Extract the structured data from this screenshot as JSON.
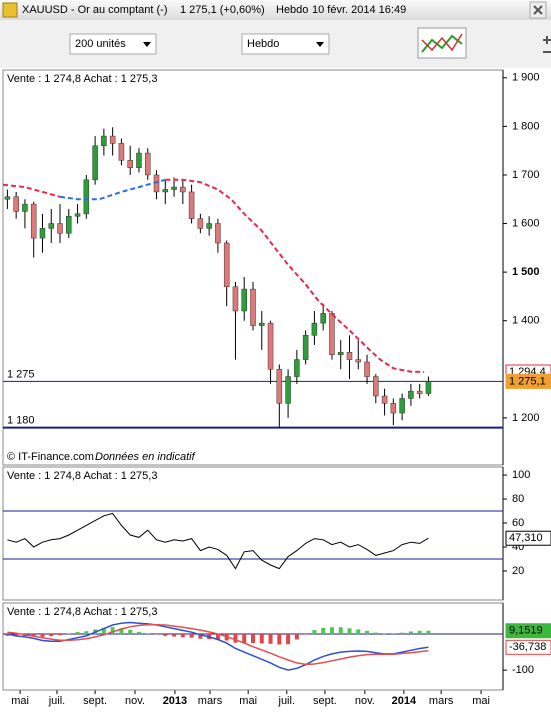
{
  "window": {
    "title": "XAUUSD - Or au comptant (-)",
    "quote": "1 275,1 (+0,60%)",
    "period": "Hebdo",
    "timestamp": "10 févr. 2014 16:49"
  },
  "toolbar": {
    "units": "200 unités",
    "period": "Hebdo"
  },
  "chart_data": [
    {
      "type": "candlestick",
      "header": "Vente : 1 274,8 Achat : 1 275,3",
      "source": "© IT-Finance.com",
      "disclaimer": "Données en indicatif",
      "up_color": "#2e9e3a",
      "down_color": "#e07878",
      "x": [
        0,
        2,
        4,
        6,
        8,
        10,
        12,
        14,
        16,
        18,
        20,
        22,
        24,
        26,
        28,
        30,
        32,
        34,
        36,
        38,
        40,
        42,
        44,
        46,
        48,
        50,
        52,
        54,
        56,
        58,
        60,
        62,
        64,
        66,
        68,
        70,
        72,
        74,
        76,
        78,
        80,
        82,
        84,
        86,
        88,
        90,
        92,
        94,
        96
      ],
      "open": [
        1650,
        1655,
        1625,
        1640,
        1570,
        1590,
        1600,
        1580,
        1615,
        1620,
        1690,
        1760,
        1780,
        1765,
        1730,
        1715,
        1745,
        1700,
        1665,
        1670,
        1675,
        1665,
        1610,
        1590,
        1600,
        1560,
        1470,
        1420,
        1465,
        1390,
        1395,
        1300,
        1230,
        1285,
        1320,
        1370,
        1395,
        1415,
        1330,
        1335,
        1320,
        1315,
        1285,
        1245,
        1230,
        1210,
        1240,
        1255,
        1250
      ],
      "high": [
        1670,
        1665,
        1650,
        1645,
        1620,
        1630,
        1640,
        1630,
        1640,
        1700,
        1780,
        1795,
        1798,
        1775,
        1760,
        1755,
        1755,
        1710,
        1690,
        1695,
        1690,
        1680,
        1620,
        1615,
        1610,
        1565,
        1480,
        1490,
        1480,
        1420,
        1400,
        1310,
        1300,
        1340,
        1380,
        1420,
        1435,
        1420,
        1360,
        1370,
        1360,
        1330,
        1290,
        1260,
        1240,
        1250,
        1270,
        1270,
        1285
      ],
      "low": [
        1630,
        1610,
        1590,
        1530,
        1540,
        1560,
        1560,
        1570,
        1600,
        1610,
        1680,
        1740,
        1740,
        1720,
        1700,
        1705,
        1690,
        1650,
        1640,
        1655,
        1640,
        1600,
        1580,
        1575,
        1540,
        1430,
        1320,
        1400,
        1380,
        1340,
        1270,
        1180,
        1200,
        1270,
        1310,
        1350,
        1380,
        1320,
        1300,
        1280,
        1300,
        1270,
        1230,
        1205,
        1185,
        1195,
        1225,
        1240,
        1245
      ],
      "close": [
        1655,
        1625,
        1640,
        1570,
        1590,
        1600,
        1580,
        1615,
        1620,
        1690,
        1760,
        1780,
        1765,
        1730,
        1715,
        1745,
        1700,
        1665,
        1670,
        1675,
        1665,
        1610,
        1590,
        1600,
        1560,
        1470,
        1420,
        1465,
        1390,
        1395,
        1300,
        1230,
        1285,
        1320,
        1370,
        1395,
        1415,
        1330,
        1335,
        1320,
        1315,
        1285,
        1245,
        1230,
        1210,
        1240,
        1255,
        1250,
        1275
      ],
      "lines": [
        {
          "color": "#e8284c",
          "x": [
            -1,
            4,
            8,
            12
          ],
          "values": [
            1680,
            1675,
            1665,
            1655
          ]
        },
        {
          "color": "#2e6fd6",
          "x": [
            12,
            16,
            21,
            26,
            30,
            34,
            36
          ],
          "values": [
            1655,
            1650,
            1650,
            1665,
            1675,
            1685,
            1690
          ]
        },
        {
          "color": "#e8284c",
          "x": [
            36,
            40,
            44,
            48,
            51,
            54,
            58,
            61,
            64,
            68,
            71,
            75,
            78,
            82,
            85,
            88,
            92,
            95
          ],
          "values": [
            1690,
            1690,
            1685,
            1670,
            1650,
            1620,
            1585,
            1550,
            1515,
            1475,
            1440,
            1405,
            1380,
            1345,
            1320,
            1302,
            1295,
            1294.4
          ]
        }
      ],
      "hlines": [
        {
          "value": 1275,
          "label": "1 275",
          "width": 1
        },
        {
          "value": 1180,
          "label": "1 180",
          "width": 2
        }
      ],
      "price_labels": [
        {
          "value": 1294.4,
          "label": "1 294,4",
          "color": "#e8284c"
        },
        {
          "value": 1275.1,
          "label": "1 275,1",
          "color": "#f0a030"
        }
      ],
      "xlim": [
        -1,
        113
      ],
      "xticks": [
        {
          "value": 2.9,
          "label": "mai"
        },
        {
          "value": 11.3,
          "label": "juil."
        },
        {
          "value": 20,
          "label": "sept."
        },
        {
          "value": 29.1,
          "label": "nov."
        },
        {
          "value": 38.2,
          "label": "2013",
          "major": true
        },
        {
          "value": 46.2,
          "label": "mars"
        },
        {
          "value": 54.9,
          "label": "mai"
        },
        {
          "value": 63.7,
          "label": "juil."
        },
        {
          "value": 72.4,
          "label": "sept."
        },
        {
          "value": 81.5,
          "label": "nov."
        },
        {
          "value": 90.4,
          "label": "2014",
          "major": true
        },
        {
          "value": 98.9,
          "label": "mars"
        },
        {
          "value": 108,
          "label": "mai"
        }
      ],
      "ylim": [
        1103,
        1916
      ],
      "yticks": [
        {
          "value": 1900,
          "label": "1 900"
        },
        {
          "value": 1800,
          "label": "1 800"
        },
        {
          "value": 1700,
          "label": "1 700"
        },
        {
          "value": 1600,
          "label": "1 600"
        },
        {
          "value": 1500,
          "label": "1 500",
          "major": true
        },
        {
          "value": 1400,
          "label": "1 400"
        },
        {
          "value": 1200,
          "label": "1 200"
        }
      ]
    },
    {
      "type": "line",
      "header": "Vente : 1 274,8 Achat : 1 275,3",
      "color": "#000000",
      "values": [
        46,
        44,
        47,
        40,
        44,
        46,
        47,
        50,
        54,
        58,
        62,
        66,
        68,
        58,
        50,
        48,
        54,
        46,
        44,
        46,
        45,
        47,
        37,
        40,
        38,
        33,
        22,
        36,
        37,
        29,
        25,
        22,
        32,
        37,
        43,
        47,
        46,
        42,
        44,
        40,
        42,
        38,
        33,
        35,
        37,
        42,
        44,
        43,
        47.31
      ],
      "levels": [
        70,
        30
      ],
      "current": {
        "value": 47.31,
        "label": "47,310"
      },
      "ylim": [
        -4.2,
        106.7
      ],
      "yticks": [
        100,
        80,
        60,
        40,
        20
      ]
    },
    {
      "type": "macd",
      "header": "Vente : 1 274,8 Achat : 1 275,3",
      "histogram": [
        -5,
        -7,
        -6,
        -6,
        -8,
        -6,
        -3,
        2,
        6,
        8,
        13,
        17,
        19,
        16,
        12,
        6,
        2,
        -1,
        -5,
        -7,
        -9,
        -10,
        -13,
        -14,
        -15,
        -18,
        -24,
        -25,
        -25,
        -26,
        -27,
        -29,
        -28,
        -15,
        -1,
        11,
        17,
        19,
        19,
        16,
        13,
        9,
        4,
        1,
        1,
        4,
        7,
        9,
        9.1519
      ],
      "pos_color": "#4cc84c",
      "neg_color": "#e04848",
      "series": [
        {
          "color": "#2e50d0",
          "values": [
            0,
            -5,
            -8,
            -12,
            -18,
            -20,
            -20,
            -15,
            -10,
            -5,
            5,
            15,
            25,
            30,
            32,
            30,
            28,
            25,
            20,
            15,
            10,
            5,
            -2,
            -8,
            -15,
            -25,
            -40,
            -50,
            -60,
            -70,
            -80,
            -92,
            -100,
            -95,
            -85,
            -72,
            -62,
            -55,
            -50,
            -48,
            -47,
            -48,
            -52,
            -55,
            -55,
            -50,
            -45,
            -40,
            -36.738
          ]
        },
        {
          "color": "#e05050",
          "values": [
            5,
            2,
            -2,
            -6,
            -10,
            -14,
            -17,
            -17,
            -16,
            -13,
            -8,
            -2,
            6,
            14,
            20,
            24,
            26,
            26,
            25,
            22,
            19,
            15,
            11,
            6,
            0,
            -7,
            -16,
            -25,
            -35,
            -44,
            -53,
            -63,
            -72,
            -80,
            -84,
            -83,
            -79,
            -74,
            -69,
            -64,
            -60,
            -57,
            -56,
            -56,
            -56,
            -54,
            -52,
            -49,
            -46
          ]
        }
      ],
      "levels": [
        0
      ],
      "current": [
        {
          "value": 9.1519,
          "label": "9,1519",
          "color": "#3cb83c"
        },
        {
          "value": -36.738,
          "label": "-36,738",
          "color": "#e84040"
        }
      ],
      "ylim": [
        -155,
        86
      ],
      "yticks": [
        -100
      ]
    }
  ]
}
